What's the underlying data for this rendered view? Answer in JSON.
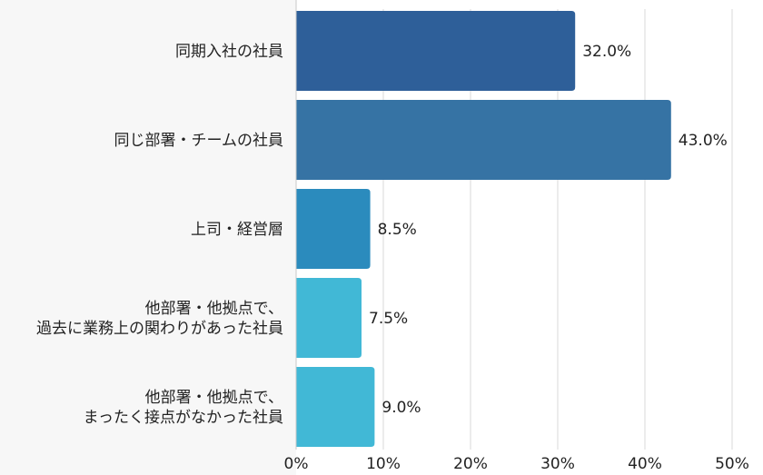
{
  "chart_data": {
    "type": "bar",
    "orientation": "horizontal",
    "categories": [
      [
        "同期入社の社員"
      ],
      [
        "同じ部署・チームの社員"
      ],
      [
        "上司・経営層"
      ],
      [
        "他部署・他拠点で、",
        "過去に業務上の関わりがあった社員"
      ],
      [
        "他部署・他拠点で、",
        "まったく接点がなかった社員"
      ]
    ],
    "values": [
      32.0,
      43.0,
      8.5,
      7.5,
      9.0
    ],
    "value_labels": [
      "32.0%",
      "43.0%",
      "8.5%",
      "7.5%",
      "9.0%"
    ],
    "bar_colors": [
      "#2e5f99",
      "#3673a4",
      "#2b8bbd",
      "#41b8d6",
      "#41b8d6"
    ],
    "xlim": [
      0,
      50
    ],
    "xticks": [
      "0%",
      "10%",
      "20%",
      "30%",
      "40%",
      "50%"
    ],
    "xlabel": "",
    "ylabel": "",
    "grid": true
  }
}
